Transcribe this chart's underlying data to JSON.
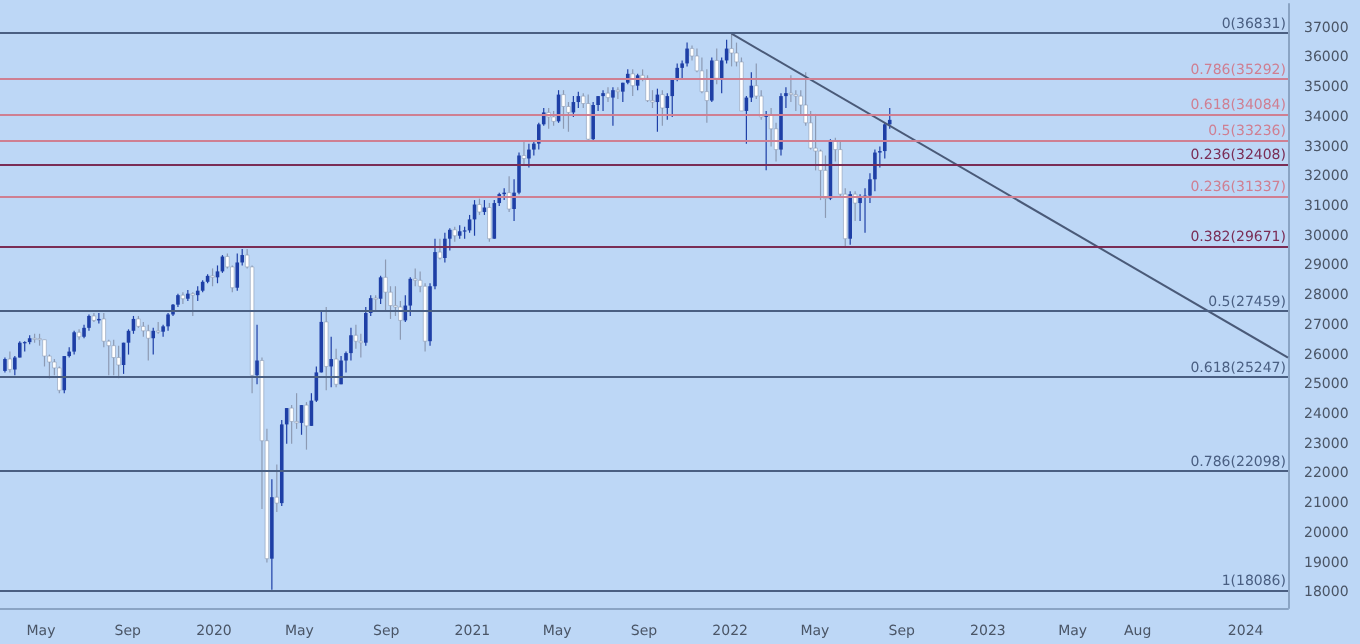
{
  "chart_data": {
    "type": "candlestick",
    "xlim": [
      "2019-03-04",
      "2024-03-01"
    ],
    "xticks": [
      {
        "value": "2019-05-01",
        "label": "May"
      },
      {
        "value": "2019-09-01",
        "label": "Sep"
      },
      {
        "value": "2020-01-01",
        "label": "2020"
      },
      {
        "value": "2020-05-01",
        "label": "May"
      },
      {
        "value": "2020-09-01",
        "label": "Sep"
      },
      {
        "value": "2021-01-01",
        "label": "2021"
      },
      {
        "value": "2021-05-01",
        "label": "May"
      },
      {
        "value": "2021-09-01",
        "label": "Sep"
      },
      {
        "value": "2022-01-01",
        "label": "2022"
      },
      {
        "value": "2022-05-01",
        "label": "May"
      },
      {
        "value": "2022-09-01",
        "label": "Sep"
      },
      {
        "value": "2023-01-01",
        "label": "2023"
      },
      {
        "value": "2023-05-01",
        "label": "May"
      },
      {
        "value": "2023-08-01",
        "label": "Aug"
      },
      {
        "value": "2024-01-01",
        "label": "2024"
      }
    ],
    "ylim": [
      17470,
      37800
    ],
    "yticks": [
      18000,
      19000,
      20000,
      21000,
      22000,
      23000,
      24000,
      25000,
      26000,
      27000,
      28000,
      29000,
      30000,
      31000,
      32000,
      33000,
      34000,
      35000,
      36000,
      37000
    ],
    "grid": false,
    "ref_lines": [
      {
        "axis": "y",
        "value": 36831,
        "label": "0(36831)",
        "color": "#4a5f82"
      },
      {
        "axis": "y",
        "value": 35292,
        "label": "0.786(35292)",
        "color": "#cf7f92"
      },
      {
        "axis": "y",
        "value": 34084,
        "label": "0.618(34084)",
        "color": "#cf7f92"
      },
      {
        "axis": "y",
        "value": 33236,
        "label": "0.5(33236)",
        "color": "#cf7f92"
      },
      {
        "axis": "y",
        "value": 32408,
        "label": "0.236(32408)",
        "color": "#7a2d55"
      },
      {
        "axis": "y",
        "value": 31337,
        "label": "0.236(31337)",
        "color": "#cf7f92"
      },
      {
        "axis": "y",
        "value": 29671,
        "label": "0.382(29671)",
        "color": "#7a2d55"
      },
      {
        "axis": "y",
        "value": 27459,
        "label": "0.5(27459)",
        "color": "#4a5f82"
      },
      {
        "axis": "y",
        "value": 25247,
        "label": "0.618(25247)",
        "color": "#4a5f82"
      },
      {
        "axis": "y",
        "value": 22098,
        "label": "0.786(22098)",
        "color": "#4a5f82"
      },
      {
        "axis": "y",
        "value": 18086,
        "label": "1(18086)",
        "color": "#4a5f82"
      }
    ],
    "series": [
      {
        "x": [
          "2019-03-11",
          "2019-03-18",
          "2019-03-25",
          "2019-04-01",
          "2019-04-08",
          "2019-04-15",
          "2019-04-22",
          "2019-04-29",
          "2019-05-06",
          "2019-05-13",
          "2019-05-20",
          "2019-05-27",
          "2019-06-03",
          "2019-06-10",
          "2019-06-17",
          "2019-06-24",
          "2019-07-01",
          "2019-07-08",
          "2019-07-15",
          "2019-07-22",
          "2019-07-29",
          "2019-08-05",
          "2019-08-12",
          "2019-08-19",
          "2019-08-26",
          "2019-09-02",
          "2019-09-09",
          "2019-09-16",
          "2019-09-23",
          "2019-09-30",
          "2019-10-07",
          "2019-10-14",
          "2019-10-21",
          "2019-10-28",
          "2019-11-04",
          "2019-11-11",
          "2019-11-18",
          "2019-11-25",
          "2019-12-02",
          "2019-12-09",
          "2019-12-16",
          "2019-12-23",
          "2019-12-30",
          "2020-01-06",
          "2020-01-13",
          "2020-01-20",
          "2020-01-27",
          "2020-02-03",
          "2020-02-10",
          "2020-02-17",
          "2020-02-24",
          "2020-03-02",
          "2020-03-09",
          "2020-03-16",
          "2020-03-23",
          "2020-03-30",
          "2020-04-06",
          "2020-04-13",
          "2020-04-20",
          "2020-04-27",
          "2020-05-04",
          "2020-05-11",
          "2020-05-18",
          "2020-05-25",
          "2020-06-01",
          "2020-06-08",
          "2020-06-15",
          "2020-06-22",
          "2020-06-29",
          "2020-07-06",
          "2020-07-13",
          "2020-07-20",
          "2020-07-27",
          "2020-08-03",
          "2020-08-10",
          "2020-08-17",
          "2020-08-24",
          "2020-08-31",
          "2020-09-07",
          "2020-09-14",
          "2020-09-21",
          "2020-09-28",
          "2020-10-05",
          "2020-10-12",
          "2020-10-19",
          "2020-10-26",
          "2020-11-02",
          "2020-11-09",
          "2020-11-16",
          "2020-11-23",
          "2020-11-30",
          "2020-12-07",
          "2020-12-14",
          "2020-12-21",
          "2020-12-28",
          "2021-01-04",
          "2021-01-11",
          "2021-01-18",
          "2021-01-25",
          "2021-02-01",
          "2021-02-08",
          "2021-02-15",
          "2021-02-22",
          "2021-03-01",
          "2021-03-08",
          "2021-03-15",
          "2021-03-22",
          "2021-03-29",
          "2021-04-05",
          "2021-04-12",
          "2021-04-19",
          "2021-04-26",
          "2021-05-03",
          "2021-05-10",
          "2021-05-17",
          "2021-05-24",
          "2021-05-31",
          "2021-06-07",
          "2021-06-14",
          "2021-06-21",
          "2021-06-28",
          "2021-07-05",
          "2021-07-12",
          "2021-07-19",
          "2021-07-26",
          "2021-08-02",
          "2021-08-09",
          "2021-08-16",
          "2021-08-23",
          "2021-08-30",
          "2021-09-06",
          "2021-09-13",
          "2021-09-20",
          "2021-09-27",
          "2021-10-04",
          "2021-10-11",
          "2021-10-18",
          "2021-10-25",
          "2021-11-01",
          "2021-11-08",
          "2021-11-15",
          "2021-11-22",
          "2021-11-29",
          "2021-12-06",
          "2021-12-13",
          "2021-12-20",
          "2021-12-27",
          "2022-01-03",
          "2022-01-10",
          "2022-01-17",
          "2022-01-24",
          "2022-01-31",
          "2022-02-07",
          "2022-02-14",
          "2022-02-21",
          "2022-02-28",
          "2022-03-07",
          "2022-03-14",
          "2022-03-21",
          "2022-03-28",
          "2022-04-04",
          "2022-04-11",
          "2022-04-18",
          "2022-04-25",
          "2022-05-02",
          "2022-05-09",
          "2022-05-16",
          "2022-05-23",
          "2022-05-30",
          "2022-06-06",
          "2022-06-13",
          "2022-06-20",
          "2022-06-27",
          "2022-07-04",
          "2022-07-11",
          "2022-07-18",
          "2022-07-25",
          "2022-08-01",
          "2022-08-08",
          "2022-08-15"
        ],
        "ohlc": [
          [
            25450,
            25900,
            25400,
            25850
          ],
          [
            25850,
            26100,
            25400,
            25500
          ],
          [
            25500,
            25950,
            25300,
            25900
          ],
          [
            25900,
            26450,
            25900,
            26400
          ],
          [
            26400,
            26450,
            26100,
            26420
          ],
          [
            26420,
            26650,
            26350,
            26550
          ],
          [
            26550,
            26700,
            26400,
            26540
          ],
          [
            26540,
            26700,
            26300,
            26500
          ],
          [
            26500,
            26500,
            25600,
            25950
          ],
          [
            25950,
            26000,
            25200,
            25750
          ],
          [
            25750,
            25850,
            25300,
            25550
          ],
          [
            25550,
            25600,
            24700,
            24800
          ],
          [
            24800,
            25950,
            24700,
            25950
          ],
          [
            25950,
            26250,
            25900,
            26100
          ],
          [
            26100,
            26800,
            26000,
            26750
          ],
          [
            26750,
            26850,
            26500,
            26600
          ],
          [
            26600,
            27000,
            26550,
            26900
          ],
          [
            26900,
            27350,
            26800,
            27300
          ],
          [
            27300,
            27400,
            27100,
            27150
          ],
          [
            27150,
            27400,
            27050,
            27200
          ],
          [
            27200,
            27400,
            26250,
            26450
          ],
          [
            26450,
            26500,
            25300,
            26300
          ],
          [
            26300,
            26500,
            25300,
            25900
          ],
          [
            25900,
            26300,
            25200,
            25650
          ],
          [
            25650,
            26400,
            25350,
            26400
          ],
          [
            26400,
            26850,
            26000,
            26800
          ],
          [
            26800,
            27300,
            26700,
            27200
          ],
          [
            27200,
            27300,
            26900,
            26950
          ],
          [
            26950,
            27100,
            26600,
            26800
          ],
          [
            26800,
            27000,
            25800,
            26550
          ],
          [
            26550,
            26900,
            26000,
            26800
          ],
          [
            26800,
            27100,
            26700,
            26770
          ],
          [
            26770,
            27000,
            26600,
            26950
          ],
          [
            26950,
            27400,
            26800,
            27350
          ],
          [
            27350,
            27700,
            27300,
            27680
          ],
          [
            27680,
            28050,
            27600,
            28000
          ],
          [
            28000,
            28100,
            27700,
            27880
          ],
          [
            27880,
            28170,
            27800,
            28050
          ],
          [
            28050,
            28100,
            27300,
            28000
          ],
          [
            28000,
            28300,
            27800,
            28150
          ],
          [
            28150,
            28500,
            28100,
            28450
          ],
          [
            28450,
            28700,
            28400,
            28650
          ],
          [
            28650,
            28900,
            28300,
            28600
          ],
          [
            28600,
            29000,
            28400,
            28800
          ],
          [
            28800,
            29350,
            28750,
            29300
          ],
          [
            29300,
            29400,
            28900,
            28950
          ],
          [
            28950,
            29000,
            28100,
            28250
          ],
          [
            28250,
            29400,
            28150,
            29100
          ],
          [
            29100,
            29550,
            29000,
            29350
          ],
          [
            29350,
            29550,
            28900,
            28950
          ],
          [
            28950,
            29000,
            24700,
            25300
          ],
          [
            25300,
            27000,
            25000,
            25800
          ],
          [
            25800,
            25900,
            20800,
            23100
          ],
          [
            23100,
            23500,
            19000,
            19130
          ],
          [
            19130,
            21800,
            18086,
            21200
          ],
          [
            21200,
            22300,
            20700,
            21000
          ],
          [
            21000,
            23800,
            20900,
            23650
          ],
          [
            23650,
            24200,
            23000,
            24200
          ],
          [
            24200,
            24300,
            23000,
            23750
          ],
          [
            23750,
            24700,
            23500,
            23700
          ],
          [
            23700,
            24300,
            23300,
            24300
          ],
          [
            24300,
            24400,
            22800,
            23600
          ],
          [
            23600,
            24700,
            23600,
            24450
          ],
          [
            24450,
            25600,
            24400,
            25400
          ],
          [
            25400,
            27500,
            25400,
            27100
          ],
          [
            27100,
            27600,
            24800,
            25600
          ],
          [
            25600,
            26600,
            24900,
            25850
          ],
          [
            25850,
            26200,
            24900,
            25000
          ],
          [
            25000,
            25950,
            25000,
            25800
          ],
          [
            25800,
            26100,
            25400,
            26050
          ],
          [
            26050,
            26900,
            25800,
            26650
          ],
          [
            26650,
            27000,
            26200,
            26450
          ],
          [
            26450,
            26700,
            25900,
            26400
          ],
          [
            26400,
            27600,
            26300,
            27400
          ],
          [
            27400,
            28000,
            27300,
            27900
          ],
          [
            27900,
            28000,
            27500,
            27880
          ],
          [
            27880,
            28650,
            27700,
            28600
          ],
          [
            28600,
            29200,
            27500,
            28100
          ],
          [
            28100,
            28300,
            27200,
            27650
          ],
          [
            27650,
            28300,
            27300,
            27600
          ],
          [
            27600,
            27800,
            26500,
            27150
          ],
          [
            27150,
            28000,
            27100,
            27650
          ],
          [
            27650,
            28600,
            27300,
            28550
          ],
          [
            28550,
            28900,
            28300,
            28500
          ],
          [
            28500,
            28800,
            28100,
            28300
          ],
          [
            28300,
            28400,
            26100,
            26450
          ],
          [
            26450,
            28400,
            26300,
            28300
          ],
          [
            28300,
            29900,
            28200,
            29450
          ],
          [
            29450,
            29900,
            29200,
            29250
          ],
          [
            29250,
            30100,
            29100,
            29900
          ],
          [
            29900,
            30250,
            29500,
            30200
          ],
          [
            30200,
            30300,
            29800,
            30000
          ],
          [
            30000,
            30350,
            29900,
            30150
          ],
          [
            30150,
            30300,
            29900,
            30180
          ],
          [
            30180,
            30700,
            30100,
            30550
          ],
          [
            30550,
            31200,
            30000,
            31050
          ],
          [
            31050,
            31250,
            30700,
            30800
          ],
          [
            30800,
            31200,
            30700,
            30950
          ],
          [
            30950,
            31100,
            29800,
            29900
          ],
          [
            29900,
            31200,
            29900,
            31100
          ],
          [
            31100,
            31450,
            31000,
            31400
          ],
          [
            31400,
            31600,
            31200,
            31450
          ],
          [
            31450,
            32000,
            30800,
            30900
          ],
          [
            30900,
            31900,
            30500,
            31450
          ],
          [
            31450,
            32800,
            31400,
            32700
          ],
          [
            32700,
            33200,
            32400,
            32600
          ],
          [
            32600,
            33100,
            32300,
            32900
          ],
          [
            32900,
            33200,
            32700,
            33100
          ],
          [
            33100,
            33800,
            32900,
            33750
          ],
          [
            33750,
            34300,
            33700,
            34150
          ],
          [
            34150,
            34300,
            33600,
            34000
          ],
          [
            34000,
            34200,
            33700,
            33850
          ],
          [
            33850,
            34900,
            33800,
            34750
          ],
          [
            34750,
            34900,
            33600,
            34350
          ],
          [
            34350,
            34500,
            33500,
            34150
          ],
          [
            34150,
            34700,
            34000,
            34500
          ],
          [
            34500,
            34850,
            34300,
            34700
          ],
          [
            34700,
            34800,
            34300,
            34450
          ],
          [
            34450,
            34750,
            33200,
            33250
          ],
          [
            33250,
            34500,
            33200,
            34400
          ],
          [
            34400,
            34700,
            34200,
            34700
          ],
          [
            34700,
            34900,
            34200,
            34800
          ],
          [
            34800,
            35000,
            34500,
            34650
          ],
          [
            34650,
            35000,
            33700,
            34900
          ],
          [
            34900,
            35000,
            34600,
            34850
          ],
          [
            34850,
            35150,
            34500,
            35150
          ],
          [
            35150,
            35600,
            35100,
            35450
          ],
          [
            35450,
            35600,
            34700,
            35050
          ],
          [
            35050,
            35450,
            34900,
            35400
          ],
          [
            35400,
            35600,
            35200,
            35300
          ],
          [
            35300,
            35400,
            34500,
            34550
          ],
          [
            34550,
            34900,
            34300,
            34500
          ],
          [
            34500,
            34950,
            33500,
            34750
          ],
          [
            34750,
            34900,
            33700,
            34300
          ],
          [
            34300,
            34800,
            33900,
            34700
          ],
          [
            34700,
            35300,
            34000,
            35250
          ],
          [
            35250,
            35800,
            35200,
            35650
          ],
          [
            35650,
            35900,
            35300,
            35800
          ],
          [
            35800,
            36500,
            35700,
            36300
          ],
          [
            36300,
            36400,
            35900,
            36050
          ],
          [
            36050,
            36300,
            35500,
            35550
          ],
          [
            35550,
            36000,
            34800,
            34850
          ],
          [
            34850,
            35600,
            33800,
            34550
          ],
          [
            34550,
            36000,
            34500,
            35900
          ],
          [
            35900,
            36300,
            35100,
            35300
          ],
          [
            35300,
            36000,
            34800,
            35900
          ],
          [
            35900,
            36600,
            35800,
            36300
          ],
          [
            36300,
            36831,
            35700,
            36150
          ],
          [
            36150,
            36500,
            35700,
            35850
          ],
          [
            35850,
            36000,
            34200,
            34200
          ],
          [
            34200,
            34700,
            33100,
            34650
          ],
          [
            34650,
            35500,
            34500,
            35050
          ],
          [
            35050,
            35800,
            34600,
            34700
          ],
          [
            34700,
            34900,
            33900,
            34000
          ],
          [
            34000,
            34200,
            32200,
            34050
          ],
          [
            34050,
            34300,
            33000,
            33600
          ],
          [
            33600,
            33800,
            32500,
            32900
          ],
          [
            32900,
            34800,
            32700,
            34700
          ],
          [
            34700,
            35000,
            34300,
            34800
          ],
          [
            34800,
            35400,
            34500,
            34750
          ],
          [
            34750,
            34900,
            34200,
            34700
          ],
          [
            34700,
            34900,
            34100,
            34400
          ],
          [
            34400,
            35500,
            33700,
            33800
          ],
          [
            33800,
            34200,
            32900,
            32950
          ],
          [
            32950,
            34100,
            32200,
            32850
          ],
          [
            32850,
            32900,
            31200,
            32200
          ],
          [
            32200,
            32700,
            30600,
            31250
          ],
          [
            31250,
            33250,
            31200,
            33200
          ],
          [
            33200,
            33300,
            32500,
            32900
          ],
          [
            32900,
            33200,
            31300,
            31400
          ],
          [
            31400,
            31600,
            29653,
            29900
          ],
          [
            29900,
            31500,
            29700,
            31400
          ],
          [
            31400,
            31500,
            30500,
            31100
          ],
          [
            31100,
            31400,
            30500,
            31300
          ],
          [
            31300,
            31600,
            30100,
            31350
          ],
          [
            31350,
            32100,
            31100,
            31900
          ],
          [
            31900,
            32900,
            31500,
            32800
          ],
          [
            32800,
            33000,
            32300,
            32850
          ],
          [
            32850,
            33800,
            32600,
            33750
          ],
          [
            33750,
            34300,
            33600,
            33900
          ]
        ],
        "colors": [
          "#1e3fa6",
          "#ffffff",
          "#1e3fa6",
          "#1e3fa6",
          "#1e3fa6",
          "#1e3fa6",
          "#ffffff",
          "#ffffff",
          "#ffffff",
          "#ffffff",
          "#ffffff",
          "#ffffff",
          "#1e3fa6",
          "#1e3fa6",
          "#1e3fa6",
          "#ffffff",
          "#1e3fa6",
          "#1e3fa6",
          "#ffffff",
          "#1e3fa6",
          "#ffffff",
          "#ffffff",
          "#ffffff",
          "#ffffff",
          "#1e3fa6",
          "#1e3fa6",
          "#1e3fa6",
          "#ffffff",
          "#ffffff",
          "#ffffff",
          "#1e3fa6",
          "#ffffff",
          "#1e3fa6",
          "#1e3fa6",
          "#1e3fa6",
          "#1e3fa6",
          "#ffffff",
          "#1e3fa6",
          "#ffffff",
          "#1e3fa6",
          "#1e3fa6",
          "#1e3fa6",
          "#ffffff",
          "#1e3fa6",
          "#1e3fa6",
          "#ffffff",
          "#ffffff",
          "#1e3fa6",
          "#1e3fa6",
          "#ffffff",
          "#ffffff",
          "#1e3fa6",
          "#ffffff",
          "#ffffff",
          "#1e3fa6",
          "#ffffff",
          "#1e3fa6",
          "#1e3fa6",
          "#ffffff",
          "#ffffff",
          "#1e3fa6",
          "#ffffff",
          "#1e3fa6",
          "#1e3fa6",
          "#1e3fa6",
          "#ffffff",
          "#1e3fa6",
          "#ffffff",
          "#1e3fa6",
          "#1e3fa6",
          "#1e3fa6",
          "#ffffff",
          "#ffffff",
          "#1e3fa6",
          "#1e3fa6",
          "#ffffff",
          "#1e3fa6",
          "#ffffff",
          "#ffffff",
          "#ffffff",
          "#ffffff",
          "#1e3fa6",
          "#1e3fa6",
          "#ffffff",
          "#ffffff",
          "#ffffff",
          "#1e3fa6",
          "#1e3fa6",
          "#ffffff",
          "#1e3fa6",
          "#1e3fa6",
          "#ffffff",
          "#1e3fa6",
          "#1e3fa6",
          "#1e3fa6",
          "#1e3fa6",
          "#ffffff",
          "#1e3fa6",
          "#ffffff",
          "#1e3fa6",
          "#1e3fa6",
          "#1e3fa6",
          "#ffffff",
          "#1e3fa6",
          "#1e3fa6",
          "#ffffff",
          "#1e3fa6",
          "#1e3fa6",
          "#1e3fa6",
          "#1e3fa6",
          "#ffffff",
          "#ffffff",
          "#1e3fa6",
          "#ffffff",
          "#ffffff",
          "#1e3fa6",
          "#1e3fa6",
          "#ffffff",
          "#ffffff",
          "#1e3fa6",
          "#1e3fa6",
          "#1e3fa6",
          "#ffffff",
          "#1e3fa6",
          "#ffffff",
          "#1e3fa6",
          "#1e3fa6",
          "#ffffff",
          "#1e3fa6",
          "#ffffff",
          "#ffffff",
          "#ffffff",
          "#1e3fa6",
          "#ffffff",
          "#1e3fa6",
          "#1e3fa6",
          "#1e3fa6",
          "#1e3fa6",
          "#1e3fa6",
          "#ffffff",
          "#ffffff",
          "#ffffff",
          "#ffffff",
          "#1e3fa6",
          "#ffffff",
          "#1e3fa6",
          "#1e3fa6",
          "#ffffff",
          "#ffffff",
          "#ffffff",
          "#1e3fa6",
          "#1e3fa6",
          "#ffffff",
          "#ffffff",
          "#1e3fa6",
          "#ffffff",
          "#ffffff",
          "#1e3fa6",
          "#1e3fa6",
          "#ffffff",
          "#ffffff",
          "#ffffff",
          "#ffffff",
          "#ffffff",
          "#ffffff",
          "#ffffff",
          "#ffffff",
          "#1e3fa6",
          "#ffffff",
          "#ffffff",
          "#ffffff",
          "#1e3fa6",
          "#ffffff",
          "#1e3fa6",
          "#1e3fa6",
          "#1e3fa6",
          "#1e3fa6",
          "#1e3fa6",
          "#1e3fa6",
          "#1e3fa6"
        ]
      },
      {
        "type": "line",
        "x": [
          "2022-01-03",
          "2024-03-01"
        ],
        "values": [
          36800,
          25900
        ],
        "color": "#4a5a78"
      }
    ]
  }
}
